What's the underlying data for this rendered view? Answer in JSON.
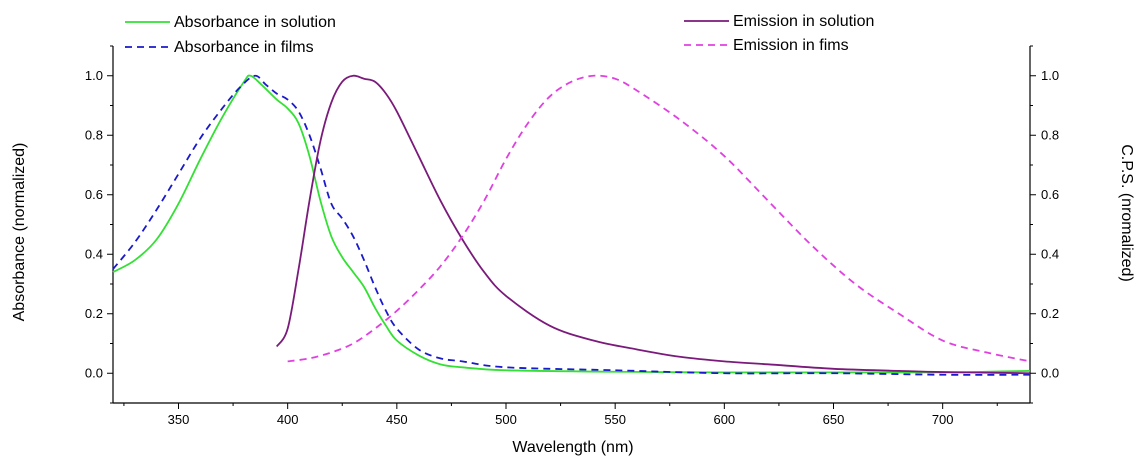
{
  "chart_data": {
    "type": "line",
    "title": "",
    "xlabel": "Wavelength (nm)",
    "ylabel_left": "Absorbance (normalized)",
    "ylabel_right": "C.P.S. (nromalized)",
    "xlim": [
      320,
      740
    ],
    "ylim": [
      -0.1,
      1.1
    ],
    "x_ticks": [
      350,
      400,
      450,
      500,
      550,
      600,
      650,
      700
    ],
    "x_tick_labels": [
      "350",
      "400",
      "450",
      "500",
      "550",
      "600",
      "650",
      "700"
    ],
    "y_ticks": [
      0.0,
      0.2,
      0.4,
      0.6,
      0.8,
      1.0
    ],
    "y_tick_labels": [
      "0.0",
      "0.2",
      "0.4",
      "0.6",
      "0.8",
      "1.0"
    ],
    "grid": false,
    "legend_placement": "top",
    "series": [
      {
        "name": "Absorbance in solution",
        "axis": "left",
        "color": "#33e033",
        "dash": "solid",
        "x": [
          320,
          330,
          340,
          350,
          360,
          370,
          380,
          383,
          388,
          395,
          400,
          405,
          410,
          415,
          420,
          425,
          430,
          435,
          440,
          445,
          450,
          460,
          470,
          480,
          500,
          550,
          600,
          650,
          700,
          720,
          740
        ],
        "y": [
          0.34,
          0.38,
          0.45,
          0.57,
          0.72,
          0.86,
          0.98,
          1.0,
          0.97,
          0.92,
          0.89,
          0.84,
          0.73,
          0.58,
          0.46,
          0.39,
          0.34,
          0.29,
          0.22,
          0.16,
          0.11,
          0.06,
          0.03,
          0.02,
          0.01,
          0.005,
          0.003,
          0.003,
          0.003,
          0.005,
          0.008
        ]
      },
      {
        "name": "Absorbance in films",
        "axis": "left",
        "color": "#1a1acc",
        "dash": "dashed",
        "x": [
          320,
          330,
          340,
          350,
          360,
          370,
          378,
          385,
          390,
          395,
          400,
          405,
          410,
          415,
          420,
          425,
          430,
          435,
          440,
          445,
          450,
          460,
          470,
          480,
          500,
          550,
          600,
          650,
          700,
          740
        ],
        "y": [
          0.35,
          0.44,
          0.55,
          0.67,
          0.79,
          0.89,
          0.96,
          1.0,
          0.97,
          0.94,
          0.92,
          0.88,
          0.8,
          0.69,
          0.57,
          0.52,
          0.46,
          0.38,
          0.29,
          0.21,
          0.15,
          0.08,
          0.05,
          0.04,
          0.02,
          0.01,
          0.0,
          0.0,
          -0.005,
          -0.005
        ]
      },
      {
        "name": "Emission in solution",
        "axis": "right",
        "color": "#7a1a7a",
        "dash": "solid",
        "x": [
          395,
          400,
          405,
          410,
          415,
          420,
          425,
          430,
          435,
          440,
          445,
          450,
          460,
          470,
          480,
          490,
          500,
          520,
          540,
          560,
          580,
          600,
          620,
          650,
          680,
          700,
          740
        ],
        "y": [
          0.09,
          0.15,
          0.35,
          0.58,
          0.78,
          0.91,
          0.98,
          1.0,
          0.99,
          0.98,
          0.94,
          0.88,
          0.73,
          0.58,
          0.45,
          0.34,
          0.26,
          0.16,
          0.11,
          0.08,
          0.055,
          0.04,
          0.03,
          0.015,
          0.008,
          0.004,
          0.0
        ]
      },
      {
        "name": "Emission in fims",
        "axis": "right",
        "color": "#e040e0",
        "dash": "dashed",
        "x": [
          400,
          410,
          420,
          430,
          440,
          450,
          460,
          470,
          480,
          490,
          500,
          510,
          520,
          530,
          540,
          550,
          560,
          580,
          600,
          620,
          640,
          660,
          680,
          700,
          720,
          740
        ],
        "y": [
          0.04,
          0.05,
          0.07,
          0.1,
          0.15,
          0.21,
          0.28,
          0.36,
          0.46,
          0.58,
          0.72,
          0.84,
          0.93,
          0.98,
          1.0,
          0.99,
          0.95,
          0.85,
          0.73,
          0.58,
          0.43,
          0.3,
          0.2,
          0.11,
          0.07,
          0.04
        ]
      }
    ]
  }
}
